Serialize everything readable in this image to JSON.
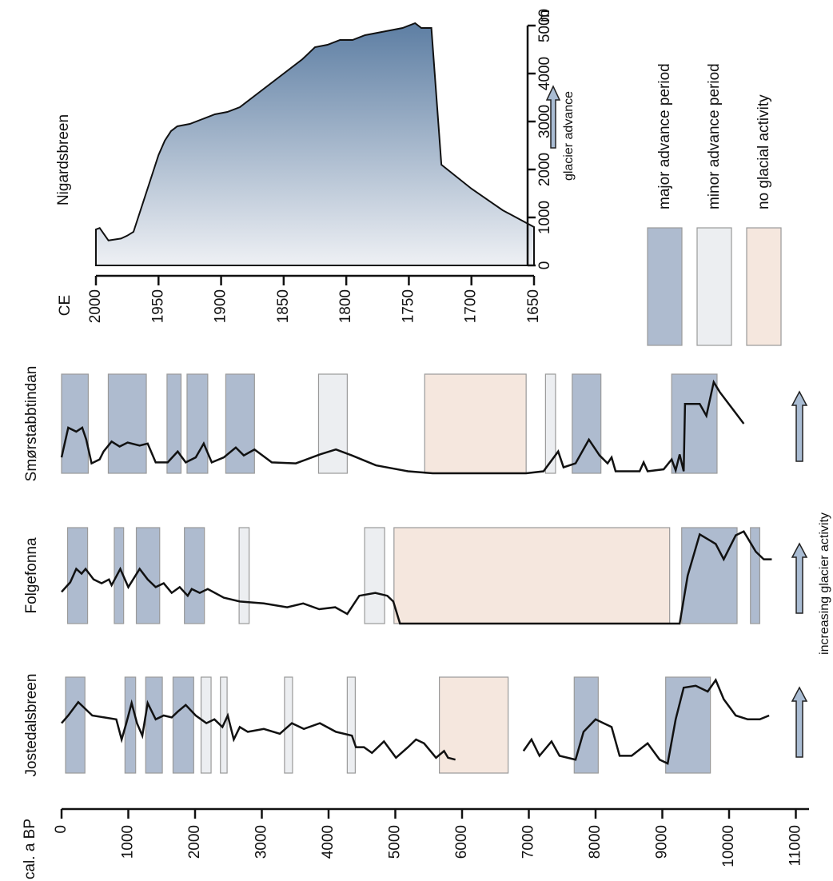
{
  "chart_data": [
    {
      "type": "area",
      "title": "Nigardsbreen",
      "x_label": "CE",
      "y_label": "m",
      "annotation": "glacier advance",
      "x": [
        2000,
        1997,
        1990,
        1980,
        1975,
        1970,
        1965,
        1960,
        1955,
        1950,
        1945,
        1940,
        1935,
        1925,
        1915,
        1905,
        1895,
        1885,
        1875,
        1865,
        1855,
        1845,
        1835,
        1825,
        1815,
        1805,
        1795,
        1785,
        1775,
        1765,
        1755,
        1745,
        1740,
        1732,
        1724,
        1700,
        1675,
        1650
      ],
      "values": [
        750,
        780,
        520,
        560,
        620,
        700,
        1100,
        1500,
        1900,
        2300,
        2600,
        2800,
        2900,
        2950,
        3050,
        3150,
        3200,
        3300,
        3500,
        3700,
        3900,
        4100,
        4300,
        4550,
        4600,
        4700,
        4700,
        4800,
        4850,
        4900,
        4950,
        5050,
        4950,
        4950,
        2100,
        1600,
        1150,
        800
      ],
      "xlim": [
        2000,
        1650
      ],
      "xticks": [
        2000,
        1950,
        1900,
        1850,
        1800,
        1750,
        1700,
        1650
      ],
      "ylim": [
        0,
        5000
      ],
      "yticks": [
        0,
        1000,
        2000,
        3000,
        4000,
        5000
      ]
    },
    {
      "type": "proxy",
      "x_label": "cal. a BP",
      "annotation": "increasing glacier activity",
      "xlim": [
        0,
        11000
      ],
      "xticks": [
        0,
        1000,
        2000,
        3000,
        4000,
        5000,
        6000,
        7000,
        8000,
        9000,
        10000,
        11000
      ],
      "ylim": [
        0,
        100
      ],
      "legend": [
        {
          "name": "major advance period",
          "color": "#aebbcf"
        },
        {
          "name": "minor advance period",
          "color": "#eceef1"
        },
        {
          "name": "no glacial activity",
          "color": "#f5e7de"
        }
      ],
      "panels": [
        {
          "name": "Smørstabbtindan",
          "periods": [
            [
              [
                0,
                400
              ],
              [
                700,
                1270
              ],
              [
                1580,
                1790
              ],
              [
                1880,
                2190
              ],
              [
                2460,
                2890
              ],
              [
                7650,
                8080
              ],
              [
                9140,
                9820
              ]
            ],
            [
              [
                3850,
                4280
              ],
              [
                7250,
                7400
              ]
            ],
            [
              [
                5440,
                6960
              ]
            ]
          ],
          "x": [
            0,
            100,
            220,
            310,
            370,
            450,
            570,
            630,
            750,
            870,
            990,
            1170,
            1290,
            1410,
            1590,
            1740,
            1860,
            2010,
            2130,
            2250,
            2430,
            2610,
            2730,
            2890,
            3150,
            3510,
            3870,
            4110,
            4350,
            4710,
            5190,
            5560,
            6960,
            7220,
            7440,
            7520,
            7700,
            7900,
            8060,
            8180,
            8240,
            8300,
            8660,
            8720,
            8780,
            9020,
            9140,
            9200,
            9260,
            9320,
            9340,
            9440,
            9560,
            9660,
            9770,
            9860,
            10040,
            10220
          ],
          "values": [
            16,
            46,
            42,
            46,
            34,
            10,
            14,
            22,
            32,
            27,
            31,
            28,
            30,
            11,
            11,
            22,
            11,
            16,
            30,
            11,
            16,
            26,
            18,
            24,
            11,
            10,
            19,
            24,
            18,
            8,
            2,
            0,
            0,
            2,
            22,
            6,
            10,
            34,
            18,
            10,
            16,
            2,
            2,
            11,
            2,
            4,
            14,
            3,
            19,
            2,
            70,
            70,
            70,
            58,
            92,
            82,
            66,
            50
          ]
        },
        {
          "name": "Folgefonna",
          "periods": [
            [
              [
                90,
                390
              ],
              [
                790,
                930
              ],
              [
                1120,
                1470
              ],
              [
                1840,
                2140
              ],
              [
                9290,
                10120
              ],
              [
                10320,
                10460
              ]
            ],
            [
              [
                2660,
                2810
              ],
              [
                4540,
                4840
              ]
            ],
            [
              [
                4980,
                9110
              ]
            ]
          ],
          "x": [
            0,
            130,
            220,
            300,
            360,
            480,
            600,
            710,
            750,
            880,
            1000,
            1170,
            1290,
            1410,
            1530,
            1650,
            1770,
            1890,
            1950,
            2070,
            2190,
            2430,
            2670,
            3030,
            3380,
            3620,
            3860,
            4100,
            4280,
            4460,
            4700,
            4880,
            4970,
            5070,
            9260,
            9380,
            9560,
            9800,
            9920,
            10100,
            10220,
            10400,
            10520,
            10640
          ],
          "values": [
            33,
            43,
            57,
            52,
            57,
            46,
            42,
            46,
            40,
            57,
            38,
            57,
            46,
            38,
            42,
            32,
            38,
            29,
            36,
            32,
            36,
            27,
            23,
            21,
            17,
            21,
            15,
            17,
            10,
            29,
            32,
            29,
            23,
            0,
            0,
            50,
            93,
            83,
            67,
            92,
            96,
            75,
            67,
            67
          ]
        },
        {
          "name": "Jostedalsbreen",
          "periods": [
            [
              [
                60,
                350
              ],
              [
                950,
                1110
              ],
              [
                1260,
                1510
              ],
              [
                1670,
                1980
              ],
              [
                7680,
                8040
              ],
              [
                9050,
                9720
              ]
            ],
            [
              [
                2090,
                2240
              ],
              [
                2380,
                2480
              ],
              [
                3340,
                3460
              ],
              [
                4280,
                4400
              ]
            ],
            [
              [
                5660,
                6690
              ]
            ]
          ],
          "x": [
            0,
            100,
            250,
            340,
            460,
            640,
            820,
            900,
            970,
            1050,
            1130,
            1210,
            1290,
            1410,
            1530,
            1650,
            1740,
            1860,
            2010,
            2170,
            2290,
            2410,
            2490,
            2580,
            2670,
            2790,
            3030,
            3270,
            3450,
            3630,
            3870,
            4110,
            4350,
            4410,
            4530,
            4650,
            4830,
            5010,
            5190,
            5310,
            5430,
            5610,
            5730,
            5790,
            5900,
            null,
            6920,
            7040,
            7160,
            7340,
            7460,
            7700,
            7820,
            8000,
            8120,
            8240,
            8360,
            8540,
            8780,
            8960,
            9080,
            9200,
            9320,
            9500,
            9680,
            9800,
            9920,
            10100,
            10280,
            10460,
            10600
          ],
          "values": [
            52,
            60,
            74,
            68,
            60,
            58,
            56,
            35,
            52,
            73,
            52,
            39,
            73,
            56,
            60,
            58,
            64,
            71,
            60,
            52,
            56,
            48,
            60,
            35,
            48,
            43,
            46,
            41,
            52,
            46,
            52,
            43,
            39,
            27,
            27,
            21,
            33,
            16,
            27,
            35,
            31,
            16,
            23,
            16,
            14,
            null,
            23,
            35,
            18,
            33,
            18,
            14,
            43,
            56,
            52,
            48,
            18,
            18,
            31,
            14,
            10,
            56,
            89,
            91,
            85,
            97,
            77,
            60,
            56,
            56,
            60
          ]
        }
      ]
    }
  ]
}
